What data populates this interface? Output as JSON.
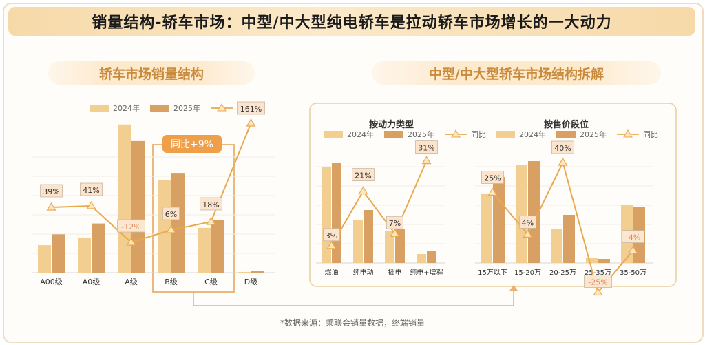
{
  "title": "销量结构-轿车市场：中型/中大型纯电轿车是拉动轿车市场增长的一大动力",
  "left_section": {
    "heading": "轿车市场销量结构",
    "callout": "同比+9%"
  },
  "right_section": {
    "heading": "中型/中大型轿车市场结构拆解",
    "sub_left": "按动力类型",
    "sub_right": "按售价段位"
  },
  "source": "*数据来源：乘联会销量数据，终端销量",
  "legend": {
    "s2024": "2024年",
    "s2025": "2025年",
    "yoy": "同比"
  },
  "colors": {
    "s2024": "#f2cf91",
    "s2025": "#d9a064",
    "yoy_line": "#e8a94f",
    "highlight": "#ef9f4a"
  },
  "chart_data": [
    {
      "type": "bar",
      "categories": [
        "A00级",
        "A0级",
        "A级",
        "B级",
        "C级",
        "D级"
      ],
      "series": [
        {
          "name": "2024年",
          "values": [
            38,
            48,
            205,
            128,
            62,
            1
          ]
        },
        {
          "name": "2025年",
          "values": [
            53,
            68,
            182,
            138,
            73,
            2
          ]
        }
      ],
      "yoy": {
        "name": "同比",
        "values": [
          39,
          41,
          -12,
          6,
          18,
          161
        ],
        "labels": [
          "39%",
          "41%",
          "-12%",
          "6%",
          "18%",
          "161%"
        ]
      }
    },
    {
      "type": "bar",
      "categories": [
        "燃油",
        "纯电动",
        "插电",
        "纯电+增程"
      ],
      "series": [
        {
          "name": "2024年",
          "values": [
            140,
            62,
            47,
            13
          ]
        },
        {
          "name": "2025年",
          "values": [
            145,
            77,
            50,
            17
          ]
        }
      ],
      "yoy": {
        "name": "同比",
        "values": [
          3,
          21,
          7,
          31
        ],
        "labels": [
          "3%",
          "21%",
          "7%",
          "31%"
        ]
      }
    },
    {
      "type": "bar",
      "categories": [
        "15万以下",
        "15-20万",
        "20-25万",
        "25-35万",
        "35-50万"
      ],
      "series": [
        {
          "name": "2024年",
          "values": [
            100,
            143,
            50,
            8,
            85
          ]
        },
        {
          "name": "2025年",
          "values": [
            125,
            148,
            70,
            6,
            82
          ]
        }
      ],
      "yoy": {
        "name": "同比",
        "values": [
          25,
          4,
          40,
          -25,
          -4
        ],
        "labels": [
          "25%",
          "4%",
          "40%",
          "-25%",
          "-4%"
        ]
      }
    }
  ]
}
